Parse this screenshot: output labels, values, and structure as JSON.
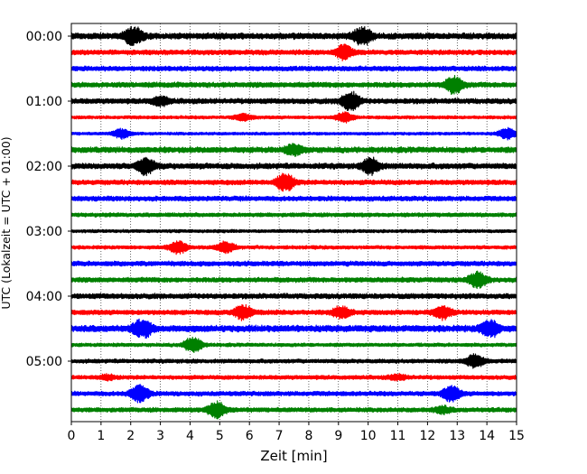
{
  "chart_data": {
    "type": "line",
    "title": "",
    "xlabel": "Zeit  [min]",
    "ylabel": "UTC (Lokalzeit = UTC + 01:00)",
    "xlim": [
      0,
      15
    ],
    "x_ticks": [
      "0",
      "1",
      "2",
      "3",
      "4",
      "5",
      "6",
      "7",
      "8",
      "9",
      "10",
      "11",
      "12",
      "13",
      "14",
      "15"
    ],
    "y_tick_labels": [
      "00:00",
      "01:00",
      "02:00",
      "03:00",
      "04:00",
      "05:00"
    ],
    "grid": "vertical dotted at each minute",
    "colors": [
      "#000000",
      "#ff0000",
      "#0000ff",
      "#008000"
    ],
    "traces": [
      {
        "label": "00:00",
        "color": "#000000",
        "amp": 0.38,
        "events": [
          {
            "t": 2.1,
            "a": 1.2
          },
          {
            "t": 9.8,
            "a": 1.2
          }
        ]
      },
      {
        "label": "00:15",
        "color": "#ff0000",
        "amp": 0.3,
        "events": [
          {
            "t": 9.2,
            "a": 0.9
          }
        ]
      },
      {
        "label": "00:30",
        "color": "#0000ff",
        "amp": 0.3,
        "events": []
      },
      {
        "label": "00:45",
        "color": "#008000",
        "amp": 0.32,
        "events": [
          {
            "t": 12.9,
            "a": 1.1
          }
        ]
      },
      {
        "label": "01:00",
        "color": "#000000",
        "amp": 0.32,
        "events": [
          {
            "t": 3.0,
            "a": 0.5
          },
          {
            "t": 9.4,
            "a": 1.3
          }
        ]
      },
      {
        "label": "01:15",
        "color": "#ff0000",
        "amp": 0.2,
        "events": [
          {
            "t": 9.2,
            "a": 0.6
          },
          {
            "t": 5.8,
            "a": 0.4
          }
        ]
      },
      {
        "label": "01:30",
        "color": "#0000ff",
        "amp": 0.18,
        "events": [
          {
            "t": 1.7,
            "a": 0.6
          },
          {
            "t": 14.7,
            "a": 0.7
          }
        ]
      },
      {
        "label": "01:45",
        "color": "#008000",
        "amp": 0.35,
        "events": [
          {
            "t": 7.5,
            "a": 0.6
          }
        ]
      },
      {
        "label": "02:00",
        "color": "#000000",
        "amp": 0.35,
        "events": [
          {
            "t": 2.5,
            "a": 1.1
          },
          {
            "t": 10.1,
            "a": 1.0
          }
        ]
      },
      {
        "label": "02:15",
        "color": "#ff0000",
        "amp": 0.3,
        "events": [
          {
            "t": 7.2,
            "a": 1.3
          }
        ]
      },
      {
        "label": "02:30",
        "color": "#0000ff",
        "amp": 0.3,
        "events": []
      },
      {
        "label": "02:45",
        "color": "#008000",
        "amp": 0.25,
        "events": []
      },
      {
        "label": "03:00",
        "color": "#000000",
        "amp": 0.2,
        "events": []
      },
      {
        "label": "03:15",
        "color": "#ff0000",
        "amp": 0.22,
        "events": [
          {
            "t": 3.6,
            "a": 0.8
          },
          {
            "t": 5.2,
            "a": 0.7
          }
        ]
      },
      {
        "label": "03:30",
        "color": "#0000ff",
        "amp": 0.3,
        "events": []
      },
      {
        "label": "03:45",
        "color": "#008000",
        "amp": 0.3,
        "events": [
          {
            "t": 13.7,
            "a": 1.0
          }
        ]
      },
      {
        "label": "04:00",
        "color": "#000000",
        "amp": 0.32,
        "events": []
      },
      {
        "label": "04:15",
        "color": "#ff0000",
        "amp": 0.3,
        "events": [
          {
            "t": 5.8,
            "a": 0.9
          },
          {
            "t": 9.1,
            "a": 0.7
          },
          {
            "t": 12.5,
            "a": 0.8
          }
        ]
      },
      {
        "label": "04:30",
        "color": "#0000ff",
        "amp": 0.4,
        "events": [
          {
            "t": 2.4,
            "a": 1.3
          },
          {
            "t": 14.1,
            "a": 1.2
          }
        ]
      },
      {
        "label": "04:45",
        "color": "#008000",
        "amp": 0.22,
        "events": [
          {
            "t": 4.1,
            "a": 1.0
          }
        ]
      },
      {
        "label": "05:00",
        "color": "#000000",
        "amp": 0.25,
        "events": [
          {
            "t": 13.6,
            "a": 0.9
          }
        ]
      },
      {
        "label": "05:15",
        "color": "#ff0000",
        "amp": 0.25,
        "events": [
          {
            "t": 1.2,
            "a": 0.3
          },
          {
            "t": 11.0,
            "a": 0.3
          }
        ]
      },
      {
        "label": "05:30",
        "color": "#0000ff",
        "amp": 0.28,
        "events": [
          {
            "t": 2.3,
            "a": 1.2
          },
          {
            "t": 12.8,
            "a": 1.0
          }
        ]
      },
      {
        "label": "05:45",
        "color": "#008000",
        "amp": 0.28,
        "events": [
          {
            "t": 4.9,
            "a": 1.1
          },
          {
            "t": 12.5,
            "a": 0.4
          }
        ]
      }
    ]
  }
}
